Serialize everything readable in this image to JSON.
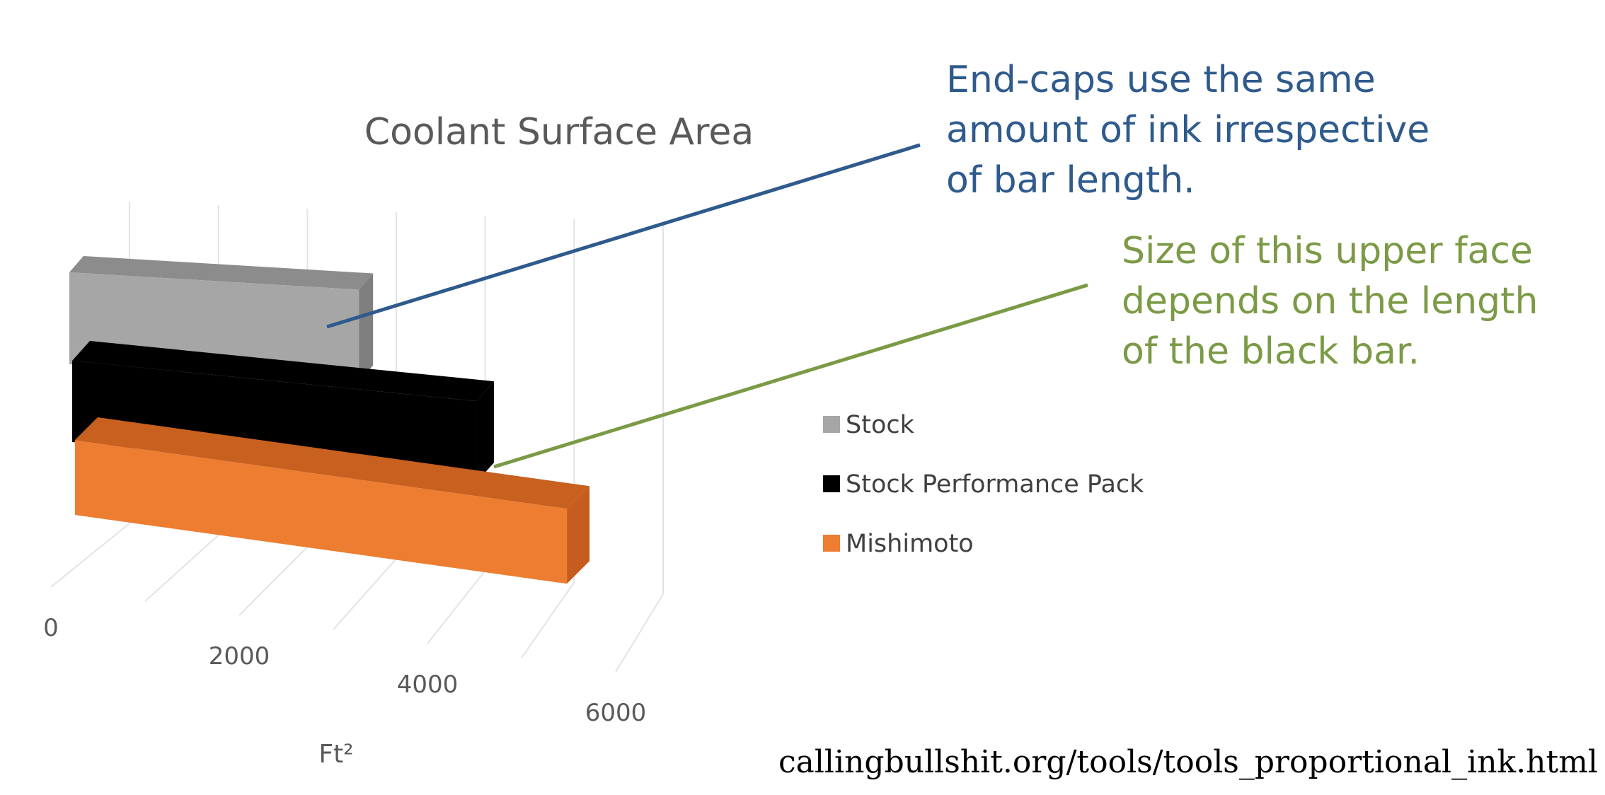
{
  "chart_data": {
    "type": "bar",
    "orientation": "horizontal",
    "style": "3d",
    "title": "Coolant Surface Area",
    "xlabel": "Ft²",
    "ylabel": "",
    "xlim": [
      0,
      6000
    ],
    "ticks": [
      "0",
      "2000",
      "4000",
      "6000"
    ],
    "grid": true,
    "legend_position": "right",
    "series": [
      {
        "name": "Stock",
        "value": 2500,
        "color": "#a6a6a6",
        "side_color": "#7f7f7f",
        "top_color": "#8c8c8c"
      },
      {
        "name": "Stock Performance Pack",
        "value": 3700,
        "color": "#000000",
        "side_color": "#000000",
        "top_color": "#000000"
      },
      {
        "name": "Mishimoto",
        "value": 4600,
        "color": "#ed7d31",
        "side_color": "#c65d1e",
        "top_color": "#c8601f"
      }
    ]
  },
  "annotations": {
    "end_caps": {
      "lines": [
        "End-caps use the same",
        "amount of ink irrespective",
        "of bar length."
      ],
      "color": "#2f5a8c"
    },
    "upper_face": {
      "lines": [
        "Size of this upper face",
        "depends on the length",
        "of the black bar."
      ],
      "color": "#7b9a45"
    }
  },
  "source": "callingbullshit.org/tools/tools_proportional_ink.html"
}
